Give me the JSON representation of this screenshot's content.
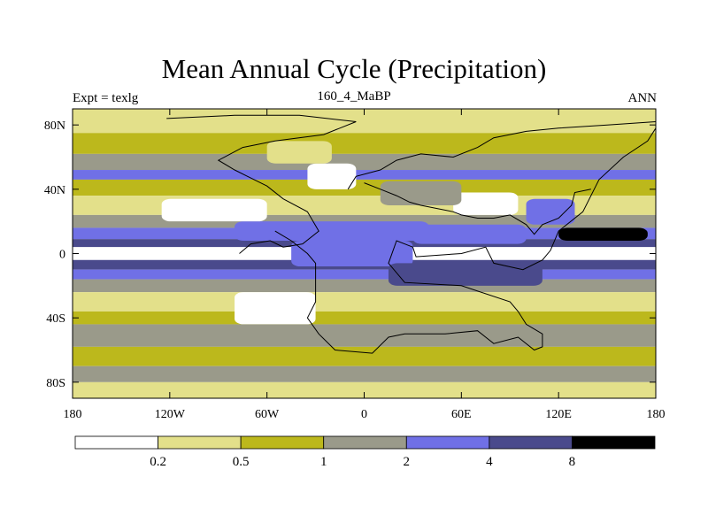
{
  "chart_data": {
    "type": "heatmap",
    "title": "Mean Annual Cycle (Precipitation)",
    "subtitle_left": "Expt = texlg",
    "subtitle_center": "160_4_MaBP",
    "subtitle_right": "ANN",
    "xlabel": "",
    "ylabel": "",
    "xlim": [
      -180,
      180
    ],
    "ylim": [
      -90,
      90
    ],
    "x_ticks": [
      {
        "value": -180,
        "label": "180"
      },
      {
        "value": -120,
        "label": "120W"
      },
      {
        "value": -60,
        "label": "60W"
      },
      {
        "value": 0,
        "label": "0"
      },
      {
        "value": 60,
        "label": "60E"
      },
      {
        "value": 120,
        "label": "120E"
      },
      {
        "value": 180,
        "label": "180"
      }
    ],
    "y_ticks": [
      {
        "value": 80,
        "label": "80N"
      },
      {
        "value": 40,
        "label": "40N"
      },
      {
        "value": 0,
        "label": "0"
      },
      {
        "value": -40,
        "label": "40S"
      },
      {
        "value": -80,
        "label": "80S"
      }
    ],
    "contour_levels": [
      {
        "value": 0.2,
        "label": "0.2"
      },
      {
        "value": 0.5,
        "label": "0.5"
      },
      {
        "value": 1,
        "label": "1"
      },
      {
        "value": 2,
        "label": "2"
      },
      {
        "value": 4,
        "label": "4"
      },
      {
        "value": 8,
        "label": "8"
      }
    ],
    "level_colors": [
      "#ffffff",
      "#e3e08a",
      "#bcb81c",
      "#9a9a8a",
      "#7070e6",
      "#4a4a8c",
      "#000000"
    ],
    "zonal_bands": [
      {
        "lat_min": 75,
        "lat_max": 90,
        "category": 1
      },
      {
        "lat_min": 62,
        "lat_max": 75,
        "category": 2
      },
      {
        "lat_min": 52,
        "lat_max": 62,
        "category": 3
      },
      {
        "lat_min": 46,
        "lat_max": 52,
        "category": 4
      },
      {
        "lat_min": 36,
        "lat_max": 46,
        "category": 2
      },
      {
        "lat_min": 24,
        "lat_max": 36,
        "category": 1
      },
      {
        "lat_min": 16,
        "lat_max": 24,
        "category": 3
      },
      {
        "lat_min": 9,
        "lat_max": 16,
        "category": 4
      },
      {
        "lat_min": 4,
        "lat_max": 9,
        "category": 5
      },
      {
        "lat_min": -4,
        "lat_max": 4,
        "category": 0
      },
      {
        "lat_min": -10,
        "lat_max": -4,
        "category": 5
      },
      {
        "lat_min": -16,
        "lat_max": -10,
        "category": 4
      },
      {
        "lat_min": -24,
        "lat_max": -16,
        "category": 3
      },
      {
        "lat_min": -36,
        "lat_max": -24,
        "category": 1
      },
      {
        "lat_min": -44,
        "lat_max": -36,
        "category": 2
      },
      {
        "lat_min": -58,
        "lat_max": -44,
        "category": 3
      },
      {
        "lat_min": -70,
        "lat_max": -58,
        "category": 2
      },
      {
        "lat_min": -80,
        "lat_max": -70,
        "category": 3
      },
      {
        "lat_min": -90,
        "lat_max": -80,
        "category": 1
      }
    ],
    "regions": [
      {
        "lon_min": -80,
        "lon_max": 40,
        "lat_min": 8,
        "lat_max": 20,
        "category": 4
      },
      {
        "lon_min": -45,
        "lon_max": 30,
        "lat_min": -8,
        "lat_max": 8,
        "category": 4
      },
      {
        "lon_min": 15,
        "lon_max": 110,
        "lat_min": -20,
        "lat_max": -6,
        "category": 5
      },
      {
        "lon_min": 30,
        "lon_max": 100,
        "lat_min": 6,
        "lat_max": 18,
        "category": 4
      },
      {
        "lon_min": 120,
        "lon_max": 175,
        "lat_min": 8,
        "lat_max": 16,
        "category": 6
      },
      {
        "lon_min": 100,
        "lon_max": 130,
        "lat_min": 18,
        "lat_max": 34,
        "category": 4
      },
      {
        "lon_min": -80,
        "lon_max": -30,
        "lat_min": -44,
        "lat_max": -24,
        "category": 0
      },
      {
        "lon_min": -125,
        "lon_max": -60,
        "lat_min": 20,
        "lat_max": 34,
        "category": 0
      },
      {
        "lon_min": 55,
        "lon_max": 95,
        "lat_min": 24,
        "lat_max": 38,
        "category": 0
      },
      {
        "lon_min": -35,
        "lon_max": -5,
        "lat_min": 40,
        "lat_max": 56,
        "category": 0
      },
      {
        "lon_min": 10,
        "lon_max": 60,
        "lat_min": 30,
        "lat_max": 45,
        "category": 3
      },
      {
        "lon_min": -60,
        "lon_max": -20,
        "lat_min": 56,
        "lat_max": 70,
        "category": 1
      }
    ],
    "land_outlines": [
      [
        [
          -122,
          84
        ],
        [
          -80,
          86
        ],
        [
          -40,
          86
        ],
        [
          -5,
          82
        ],
        [
          -25,
          74
        ],
        [
          -55,
          70
        ],
        [
          -75,
          66
        ],
        [
          -90,
          58
        ],
        [
          -80,
          52
        ],
        [
          -72,
          48
        ],
        [
          -60,
          42
        ],
        [
          -50,
          34
        ],
        [
          -35,
          26
        ],
        [
          -28,
          14
        ],
        [
          -38,
          6
        ],
        [
          -50,
          4
        ],
        [
          -58,
          8
        ],
        [
          -70,
          6
        ],
        [
          -77,
          0
        ]
      ],
      [
        [
          -55,
          14
        ],
        [
          -45,
          8
        ],
        [
          -35,
          0
        ],
        [
          -30,
          -6
        ],
        [
          -30,
          -30
        ],
        [
          -35,
          -40
        ],
        [
          -28,
          -50
        ],
        [
          -18,
          -60
        ],
        [
          5,
          -62
        ],
        [
          15,
          -52
        ],
        [
          25,
          -50
        ],
        [
          50,
          -50
        ],
        [
          70,
          -48
        ],
        [
          80,
          -56
        ],
        [
          95,
          -52
        ],
        [
          105,
          -60
        ],
        [
          110,
          -58
        ],
        [
          110,
          -50
        ],
        [
          100,
          -44
        ],
        [
          95,
          -36
        ],
        [
          90,
          -30
        ],
        [
          60,
          -20
        ],
        [
          25,
          -18
        ],
        [
          15,
          -6
        ],
        [
          20,
          8
        ],
        [
          30,
          4
        ],
        [
          32,
          -2
        ],
        [
          60,
          0
        ],
        [
          75,
          4
        ],
        [
          80,
          -6
        ],
        [
          98,
          -10
        ],
        [
          110,
          -4
        ],
        [
          115,
          2
        ],
        [
          120,
          14
        ],
        [
          135,
          26
        ],
        [
          145,
          46
        ],
        [
          160,
          60
        ],
        [
          175,
          70
        ],
        [
          180,
          78
        ]
      ],
      [
        [
          -10,
          40
        ],
        [
          -5,
          48
        ],
        [
          10,
          52
        ],
        [
          20,
          58
        ],
        [
          35,
          62
        ],
        [
          55,
          60
        ],
        [
          70,
          66
        ],
        [
          80,
          72
        ],
        [
          100,
          76
        ],
        [
          120,
          78
        ],
        [
          150,
          80
        ],
        [
          180,
          82
        ]
      ],
      [
        [
          0,
          44
        ],
        [
          10,
          40
        ],
        [
          20,
          36
        ],
        [
          28,
          32
        ],
        [
          35,
          30
        ],
        [
          45,
          28
        ],
        [
          55,
          26
        ],
        [
          60,
          24
        ],
        [
          70,
          22
        ],
        [
          80,
          22
        ],
        [
          90,
          24
        ],
        [
          100,
          18
        ],
        [
          105,
          12
        ],
        [
          110,
          18
        ],
        [
          120,
          22
        ],
        [
          128,
          30
        ],
        [
          130,
          38
        ],
        [
          140,
          40
        ]
      ]
    ]
  }
}
